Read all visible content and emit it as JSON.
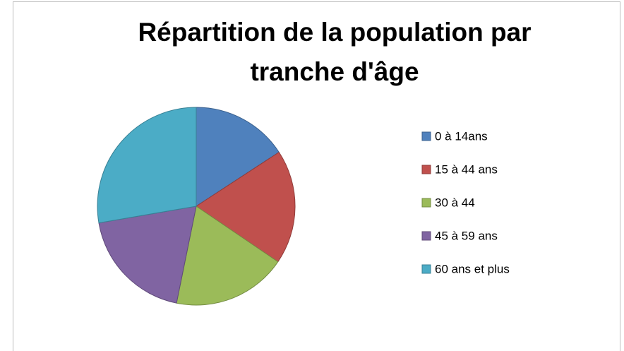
{
  "chart_data": {
    "type": "pie",
    "title": "Répartition de la population par tranche d'âge",
    "categories": [
      "0 à 14ans",
      "15 à 44 ans",
      "30 à 44",
      "45 à 59 ans",
      "60 ans et plus"
    ],
    "values": [
      15.8,
      18.7,
      18.7,
      19.1,
      27.7
    ],
    "colors": [
      "#4f81bd",
      "#c0504d",
      "#9bbb59",
      "#8064a2",
      "#4bacc6"
    ],
    "legend": "right"
  }
}
